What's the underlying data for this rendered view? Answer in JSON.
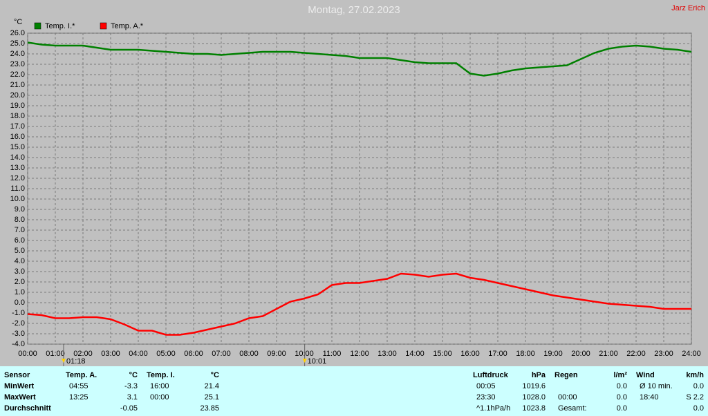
{
  "chart_data": {
    "type": "line",
    "title": "Montag, 27.02.2023",
    "author": "Jarz Erich",
    "y_unit": "°C",
    "x": [
      0,
      0.5,
      1,
      1.5,
      2,
      2.5,
      3,
      3.5,
      4,
      4.5,
      5,
      5.5,
      6,
      6.5,
      7,
      7.5,
      8,
      8.5,
      9,
      9.5,
      10,
      10.5,
      11,
      11.5,
      12,
      12.5,
      13,
      13.5,
      14,
      14.5,
      15,
      15.5,
      16,
      16.5,
      17,
      17.5,
      18,
      18.5,
      19,
      19.5,
      20,
      20.5,
      21,
      21.5,
      22,
      22.5,
      23,
      23.5,
      24
    ],
    "series": [
      {
        "name": "Temp. I.*",
        "color": "#008000",
        "values": [
          25.1,
          24.9,
          24.8,
          24.8,
          24.8,
          24.6,
          24.4,
          24.4,
          24.4,
          24.3,
          24.2,
          24.1,
          24.0,
          24.0,
          23.9,
          24.0,
          24.1,
          24.2,
          24.2,
          24.2,
          24.1,
          24.0,
          23.9,
          23.8,
          23.6,
          23.6,
          23.6,
          23.4,
          23.2,
          23.1,
          23.1,
          23.1,
          22.1,
          21.9,
          22.1,
          22.4,
          22.6,
          22.7,
          22.8,
          22.9,
          23.5,
          24.1,
          24.5,
          24.7,
          24.8,
          24.7,
          24.5,
          24.4,
          24.2
        ]
      },
      {
        "name": "Temp. A.*",
        "color": "#ff0000",
        "values": [
          -1.1,
          -1.2,
          -1.5,
          -1.5,
          -1.4,
          -1.4,
          -1.6,
          -2.1,
          -2.7,
          -2.7,
          -3.1,
          -3.1,
          -2.9,
          -2.6,
          -2.3,
          -2.0,
          -1.5,
          -1.3,
          -0.6,
          0.1,
          0.4,
          0.8,
          1.7,
          1.9,
          1.9,
          2.1,
          2.3,
          2.8,
          2.7,
          2.5,
          2.7,
          2.8,
          2.4,
          2.2,
          1.9,
          1.6,
          1.3,
          1.0,
          0.7,
          0.5,
          0.3,
          0.1,
          -0.1,
          -0.2,
          -0.3,
          -0.4,
          -0.6,
          -0.6,
          -0.6
        ]
      }
    ],
    "xlim": [
      0,
      24
    ],
    "xticks": [
      {
        "value": 0,
        "label": "00:00"
      },
      {
        "value": 1,
        "label": "01:00"
      },
      {
        "value": 2,
        "label": "02:00"
      },
      {
        "value": 3,
        "label": "03:00"
      },
      {
        "value": 4,
        "label": "04:00"
      },
      {
        "value": 5,
        "label": "05:00"
      },
      {
        "value": 6,
        "label": "06:00"
      },
      {
        "value": 7,
        "label": "07:00"
      },
      {
        "value": 8,
        "label": "08:00"
      },
      {
        "value": 9,
        "label": "09:00"
      },
      {
        "value": 10,
        "label": "10:00"
      },
      {
        "value": 11,
        "label": "11:00"
      },
      {
        "value": 12,
        "label": "12:00"
      },
      {
        "value": 13,
        "label": "13:00"
      },
      {
        "value": 14,
        "label": "14:00"
      },
      {
        "value": 15,
        "label": "15:00"
      },
      {
        "value": 16,
        "label": "16:00"
      },
      {
        "value": 17,
        "label": "17:00"
      },
      {
        "value": 18,
        "label": "18:00"
      },
      {
        "value": 19,
        "label": "19:00"
      },
      {
        "value": 20,
        "label": "20:00"
      },
      {
        "value": 21,
        "label": "21:00"
      },
      {
        "value": 22,
        "label": "22:00"
      },
      {
        "value": 23,
        "label": "23:00"
      },
      {
        "value": 24,
        "label": "24:00"
      }
    ],
    "ylim": [
      -4,
      26
    ],
    "yticks": [
      {
        "value": -4,
        "label": "-4.0"
      },
      {
        "value": -3,
        "label": "-3.0"
      },
      {
        "value": -2,
        "label": "-2.0"
      },
      {
        "value": -1,
        "label": "-1.0"
      },
      {
        "value": 0,
        "label": "0.0"
      },
      {
        "value": 1,
        "label": "1.0"
      },
      {
        "value": 2,
        "label": "2.0"
      },
      {
        "value": 3,
        "label": "3.0"
      },
      {
        "value": 4,
        "label": "4.0"
      },
      {
        "value": 5,
        "label": "5.0"
      },
      {
        "value": 6,
        "label": "6.0"
      },
      {
        "value": 7,
        "label": "7.0"
      },
      {
        "value": 8,
        "label": "8.0"
      },
      {
        "value": 9,
        "label": "9.0"
      },
      {
        "value": 10,
        "label": "10.0"
      },
      {
        "value": 11,
        "label": "11.0"
      },
      {
        "value": 12,
        "label": "12.0"
      },
      {
        "value": 13,
        "label": "13.0"
      },
      {
        "value": 14,
        "label": "14.0"
      },
      {
        "value": 15,
        "label": "15.0"
      },
      {
        "value": 16,
        "label": "16.0"
      },
      {
        "value": 17,
        "label": "17.0"
      },
      {
        "value": 18,
        "label": "18.0"
      },
      {
        "value": 19,
        "label": "19.0"
      },
      {
        "value": 20,
        "label": "20.0"
      },
      {
        "value": 21,
        "label": "21.0"
      },
      {
        "value": 22,
        "label": "22.0"
      },
      {
        "value": 23,
        "label": "23.0"
      },
      {
        "value": 24,
        "label": "24.0"
      },
      {
        "value": 25,
        "label": "25.0"
      },
      {
        "value": 26,
        "label": "26.0"
      }
    ],
    "grid": true,
    "markers": [
      {
        "value": 1.3,
        "label": "01:18"
      },
      {
        "value": 10.0167,
        "label": "10:01"
      }
    ]
  },
  "table": {
    "row_labels": [
      "Sensor",
      "MinWert",
      "MaxWert",
      "Durchschnitt"
    ],
    "blocks": [
      {
        "header": [
          "Temp. A.",
          "°C"
        ],
        "rows": [
          [
            "04:55",
            "-3.3"
          ],
          [
            "13:25",
            "3.1"
          ],
          [
            null,
            "-0.05"
          ]
        ]
      },
      {
        "header": [
          "Temp. I.",
          "°C"
        ],
        "rows": [
          [
            "16:00",
            "21.4"
          ],
          [
            "00:00",
            "25.1"
          ],
          [
            null,
            "23.85"
          ]
        ]
      },
      {
        "header": [
          "Luftdruck",
          "hPa"
        ],
        "rows": [
          [
            "00:05",
            "1019.6"
          ],
          [
            "23:30",
            "1028.0"
          ],
          [
            "^1.1hPa/h",
            "1023.8"
          ]
        ]
      },
      {
        "header": [
          "Regen",
          "l/m²"
        ],
        "rows": [
          [
            null,
            "0.0"
          ],
          [
            "00:00",
            "0.0"
          ],
          [
            "Gesamt:",
            "0.0"
          ]
        ]
      },
      {
        "header": [
          "Wind",
          "km/h"
        ],
        "rows": [
          [
            "Ø 10 min.",
            "0.0"
          ],
          [
            "18:40",
            "S 2.2"
          ],
          [
            null,
            "0.0"
          ]
        ]
      }
    ]
  }
}
